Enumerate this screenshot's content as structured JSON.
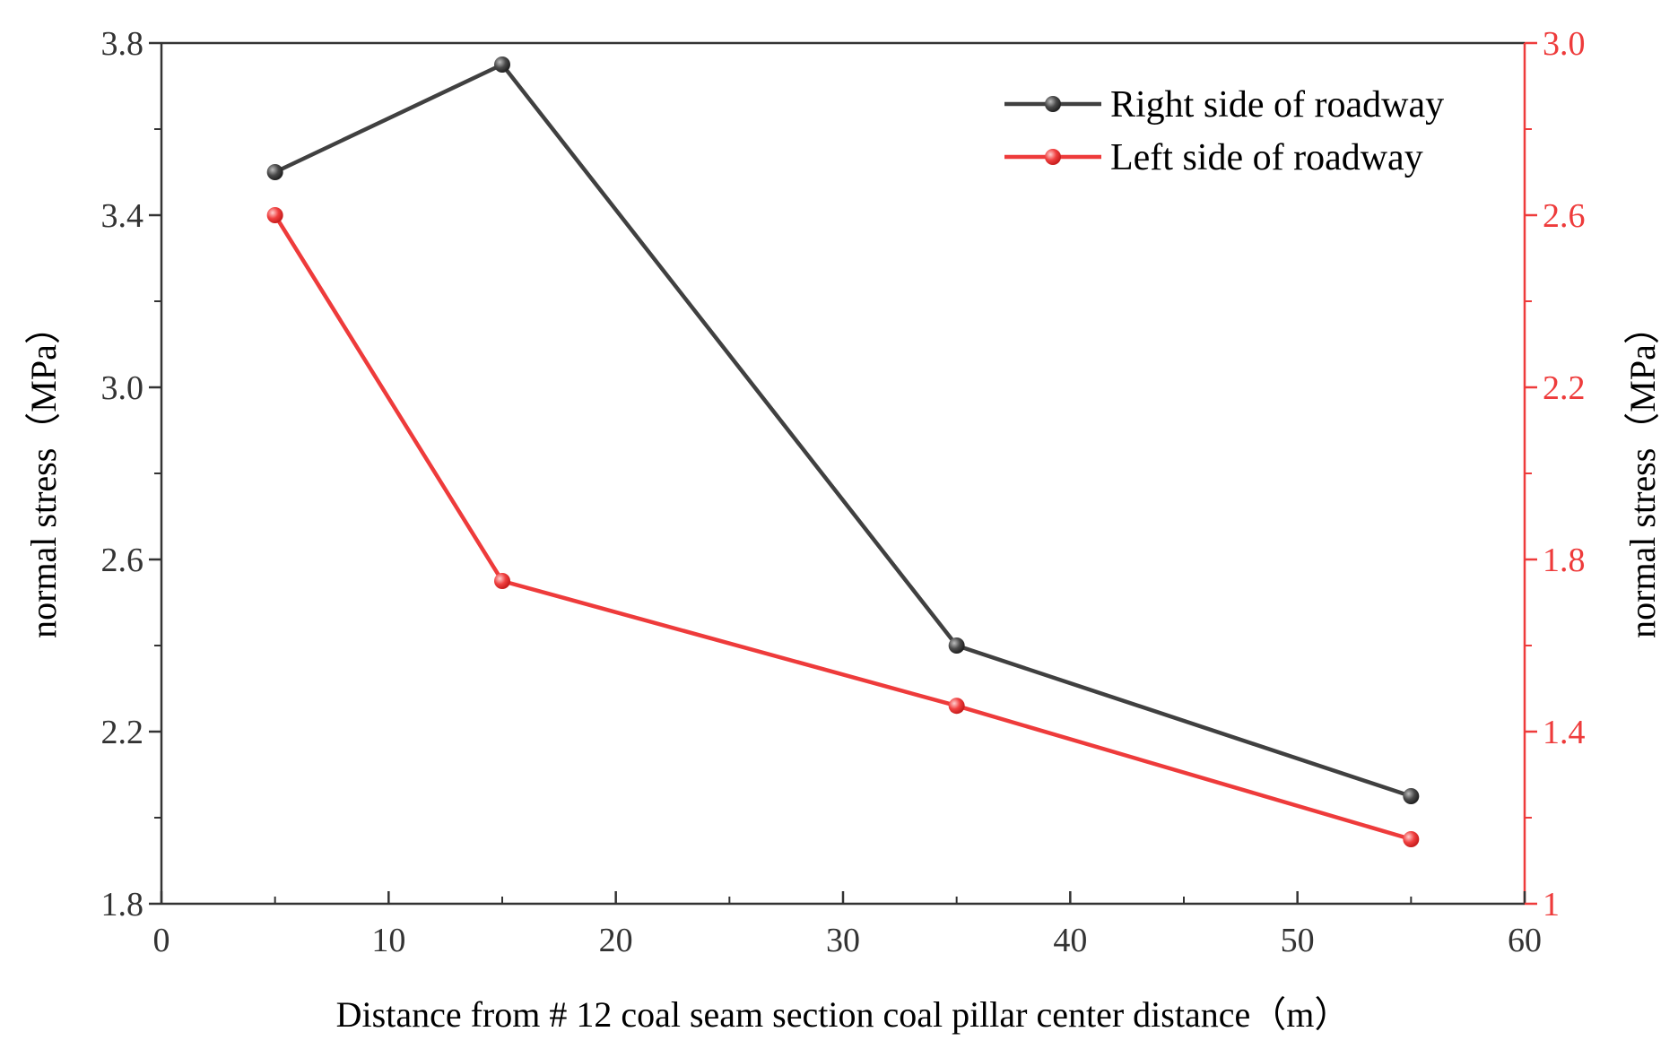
{
  "chart_data": {
    "type": "line",
    "title": "",
    "xlabel": "Distance from # 12  coal seam section coal pillar center distance（m）",
    "ylabel_left": "normal stress（MPa）",
    "ylabel_right": "normal stress（MPa）",
    "xlim": [
      0,
      60
    ],
    "xticks": [
      0,
      10,
      20,
      30,
      40,
      50,
      60
    ],
    "ylim_left": [
      1.8,
      3.8
    ],
    "yticks_left": [
      "1.8",
      "2.2",
      "2.6",
      "3.0",
      "3.4",
      "3.8"
    ],
    "ylim_right": [
      1.0,
      3.0
    ],
    "yticks_right": [
      "1",
      "1.4",
      "1.8",
      "2.2",
      "2.6",
      "3.0"
    ],
    "legend_position": "top-right",
    "series": [
      {
        "name": "Right side of roadway",
        "axis": "left",
        "color": "#404040",
        "x": [
          5,
          15,
          35,
          55
        ],
        "y": [
          3.5,
          3.75,
          2.4,
          2.05
        ]
      },
      {
        "name": "Left side of roadway",
        "axis": "right",
        "color": "#ee3b3b",
        "x": [
          5,
          15,
          35,
          55
        ],
        "y": [
          2.6,
          1.75,
          1.46,
          1.15
        ]
      }
    ]
  }
}
